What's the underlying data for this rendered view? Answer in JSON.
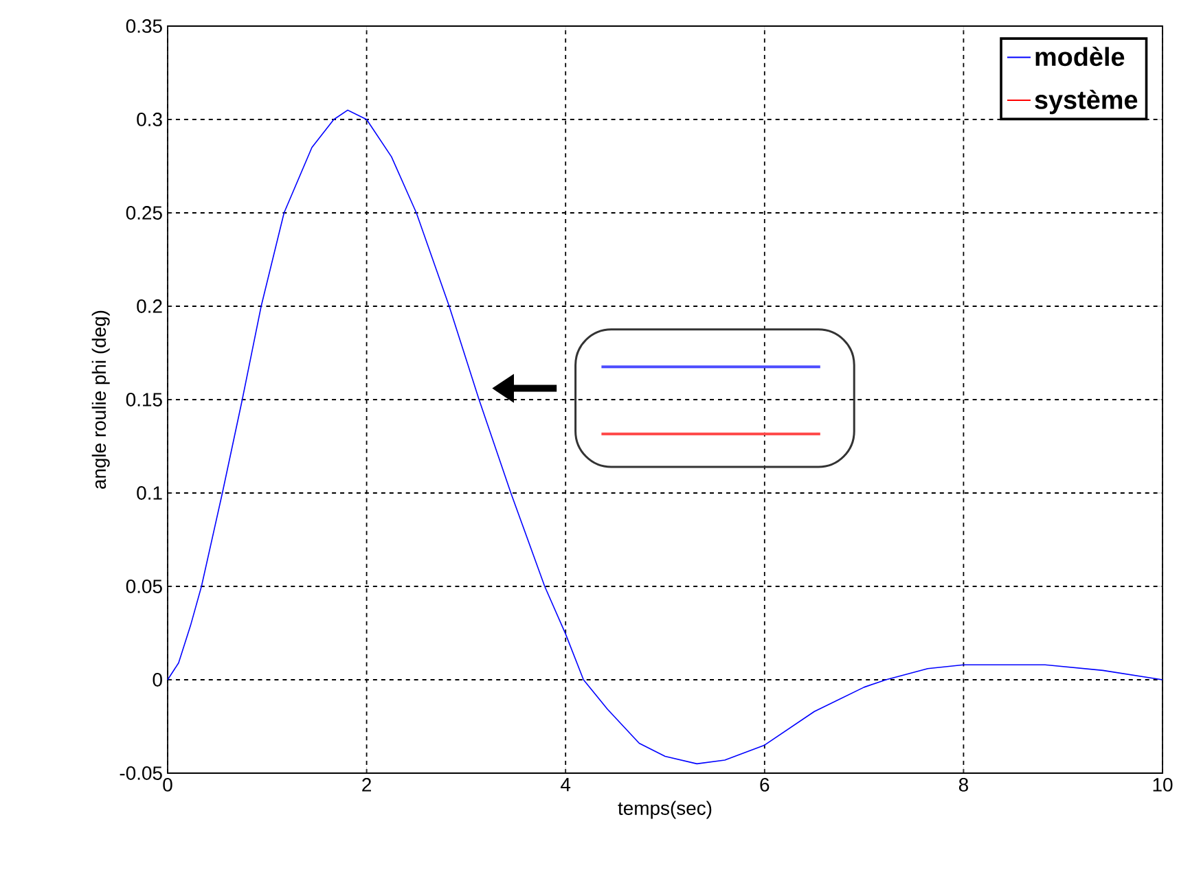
{
  "chart_data": {
    "type": "line",
    "xlabel": "temps(sec)",
    "ylabel": "angle roulie phi  (deg)",
    "x": [
      0,
      0.11,
      0.23,
      0.34,
      0.55,
      0.75,
      0.94,
      1.17,
      1.45,
      1.67,
      1.81,
      2.0,
      2.25,
      2.5,
      2.83,
      3.13,
      3.45,
      3.79,
      4.0,
      4.18,
      4.42,
      4.74,
      5.0,
      5.32,
      5.6,
      6.0,
      6.5,
      7.0,
      7.22,
      7.64,
      8.0,
      8.4,
      8.82,
      9.4,
      10
    ],
    "series": [
      {
        "name": "modèle",
        "color": "#0000ff",
        "values": [
          0,
          0.009,
          0.029,
          0.05,
          0.1,
          0.15,
          0.2,
          0.25,
          0.285,
          0.3,
          0.305,
          0.3,
          0.28,
          0.25,
          0.2,
          0.15,
          0.1,
          0.05,
          0.0245,
          0,
          -0.0157,
          -0.034,
          -0.041,
          -0.045,
          -0.043,
          -0.035,
          -0.017,
          -0.004,
          0,
          0.006,
          0.008,
          0.008,
          0.008,
          0.005,
          0
        ]
      },
      {
        "name": "système",
        "color": "#ff0000",
        "values": [
          null,
          null,
          null,
          null,
          null,
          null,
          null,
          null,
          null,
          null,
          null,
          null,
          null,
          null,
          null,
          null,
          null,
          null,
          null,
          null,
          null,
          null,
          null,
          null,
          null,
          null,
          null,
          null,
          null,
          null,
          null,
          null,
          null,
          null,
          null
        ]
      }
    ],
    "xlim": [
      0,
      10
    ],
    "ylim": [
      -0.05,
      0.35
    ],
    "xticks": [
      0,
      2,
      4,
      6,
      8,
      10
    ],
    "yticks": [
      -0.05,
      0,
      0.05,
      0.1,
      0.15,
      0.2,
      0.25,
      0.3,
      0.35
    ],
    "grid": true,
    "legend": "top right",
    "marker": "none",
    "line_style": "solid"
  }
}
